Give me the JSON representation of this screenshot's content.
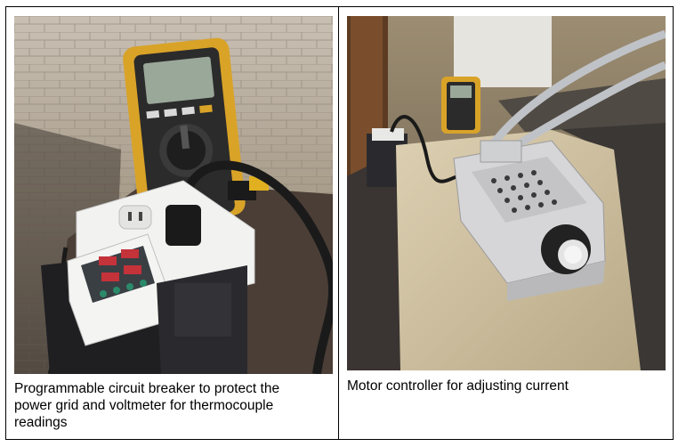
{
  "figures": [
    {
      "photo_icon": "multimeter-and-breaker-photo",
      "caption": "Programmable circuit breaker to protect the\npower grid and voltmeter for thermocouple\nreadings",
      "colors": {
        "multimeter_body": "#d9a328",
        "multimeter_screen": "#9aa89a",
        "outlet": "#f2f2f0",
        "breaker_display": "#c4323a",
        "pavement": "#a89c8a",
        "cable": "#1a1a1a"
      }
    },
    {
      "photo_icon": "motor-controller-photo",
      "caption": "Motor controller for adjusting current",
      "colors": {
        "heatsink": "#d6d6d8",
        "knob": "#222222",
        "concrete_ledge": "#cfc0a0",
        "cable": "#bfc2c6",
        "brick_wall": "#3a3734"
      }
    }
  ]
}
